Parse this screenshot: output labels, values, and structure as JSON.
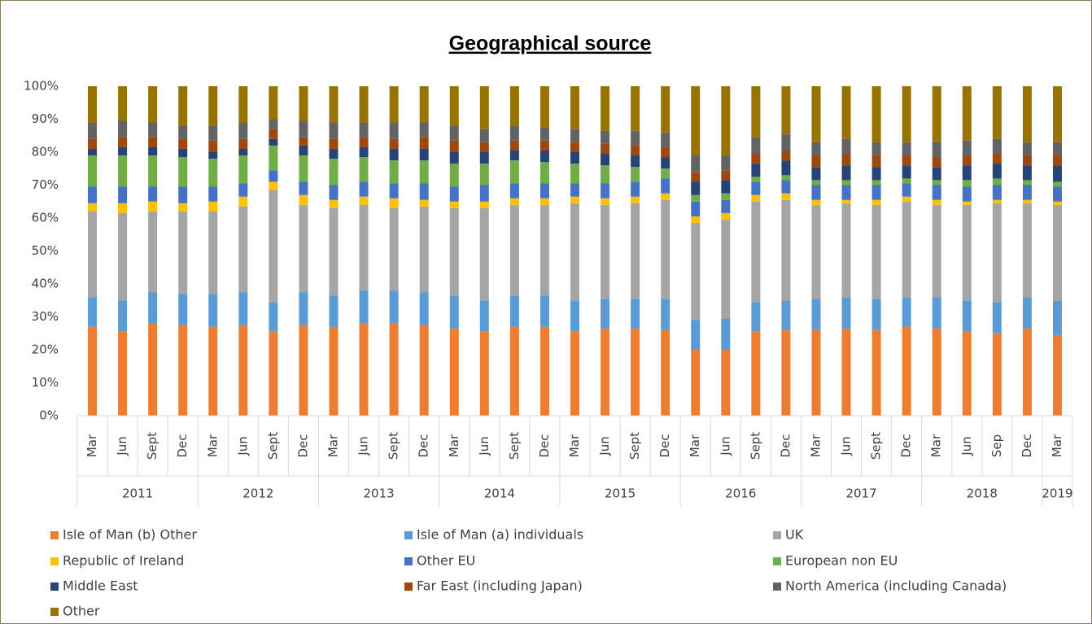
{
  "chart_data": {
    "type": "stacked_bar",
    "title": "Geographical source",
    "category_groups": [
      {
        "name": "2011",
        "categories": [
          "Mar",
          "Jun",
          "Sept",
          "Dec"
        ]
      },
      {
        "name": "2012",
        "categories": [
          "Mar",
          "Jun",
          "Sept",
          "Dec"
        ]
      },
      {
        "name": "2013",
        "categories": [
          "Mar",
          "Jun",
          "Sept",
          "Dec"
        ]
      },
      {
        "name": "2014",
        "categories": [
          "Mar",
          "Jun",
          "Sept",
          "Dec"
        ]
      },
      {
        "name": "2015",
        "categories": [
          "Mar",
          "Jun",
          "Sept",
          "Dec"
        ]
      },
      {
        "name": "2016",
        "categories": [
          "Mar",
          "Jun",
          "Sept",
          "Dec"
        ]
      },
      {
        "name": "2017",
        "categories": [
          "Mar",
          "Jun",
          "Sept",
          "Dec"
        ]
      },
      {
        "name": "2018",
        "categories": [
          "Mar",
          "Jun",
          "Sep",
          "Dec"
        ]
      },
      {
        "name": "2019",
        "categories": [
          "Mar"
        ]
      }
    ],
    "ylim": [
      0,
      100
    ],
    "yticks": [
      {
        "value": 0,
        "label": "0%"
      },
      {
        "value": 10,
        "label": "10%"
      },
      {
        "value": 20,
        "label": "20%"
      },
      {
        "value": 30,
        "label": "30%"
      },
      {
        "value": 40,
        "label": "40%"
      },
      {
        "value": 50,
        "label": "50%"
      },
      {
        "value": 60,
        "label": "60%"
      },
      {
        "value": 70,
        "label": "70%"
      },
      {
        "value": 80,
        "label": "80%"
      },
      {
        "value": 90,
        "label": "90%"
      },
      {
        "value": 100,
        "label": "100%"
      }
    ],
    "grid": false,
    "series": [
      {
        "name": "Isle of Man (b) Other",
        "color": "#ed7d31",
        "values": [
          27,
          25.5,
          28,
          27.5,
          27,
          27.5,
          25.5,
          27.5,
          27,
          28,
          28,
          27.5,
          26.5,
          25.5,
          27,
          27,
          25.5,
          26.5,
          26.5,
          26,
          20,
          20,
          25.5,
          26,
          26,
          26.5,
          26,
          27,
          26.5,
          25.5,
          25,
          26.5,
          24.5
        ]
      },
      {
        "name": "Isle of Man (a) individuals",
        "color": "#5b9bd5",
        "values": [
          9,
          9.5,
          9.5,
          9.5,
          10,
          10,
          9,
          10,
          9.5,
          10,
          10,
          10,
          10,
          9.5,
          9.5,
          9.5,
          9.5,
          9,
          9,
          9.5,
          9,
          9.5,
          9,
          9,
          9.5,
          9.5,
          9.5,
          9,
          9.5,
          9.5,
          9.5,
          9.5,
          10.5
        ]
      },
      {
        "name": "UK",
        "color": "#a5a5a5",
        "values": [
          26,
          26.5,
          24.5,
          25,
          25,
          26,
          34,
          26.5,
          26.5,
          26,
          25,
          26,
          26.5,
          28,
          27.5,
          27.5,
          29.5,
          28.5,
          29,
          30,
          29.5,
          30,
          30.5,
          30.5,
          28.5,
          28.5,
          28.5,
          29,
          28,
          29,
          30,
          28.5,
          29
        ]
      },
      {
        "name": "Republic of Ireland",
        "color": "#ffc000",
        "values": [
          2.5,
          3,
          3,
          2.5,
          3,
          3,
          2.5,
          3,
          2.5,
          2.5,
          3,
          2,
          2,
          2,
          2,
          2,
          2,
          2,
          2,
          2,
          2,
          2,
          2,
          2,
          1.5,
          1,
          1.5,
          1.5,
          1.5,
          1,
          1,
          1,
          1
        ]
      },
      {
        "name": "Other EU",
        "color": "#4472c4",
        "values": [
          5,
          5,
          4.5,
          5,
          4.5,
          4,
          3.5,
          4,
          4.5,
          4.5,
          4.5,
          5,
          4.5,
          5,
          4.5,
          4.5,
          4,
          4.5,
          4.5,
          4.5,
          4.5,
          4,
          4,
          4,
          4.5,
          4.5,
          4.5,
          4,
          4.5,
          4.5,
          4.5,
          4.5,
          4.5
        ]
      },
      {
        "name": "European non EU",
        "color": "#70ad47",
        "values": [
          9.5,
          9.5,
          9.5,
          9,
          8.5,
          8.5,
          7.5,
          8,
          8,
          7.5,
          7,
          7,
          7,
          6.5,
          7,
          6.5,
          6,
          5.5,
          4.5,
          3,
          2,
          2,
          1.5,
          1.5,
          1.5,
          1.5,
          1.5,
          1.5,
          1.5,
          2,
          2,
          1.5,
          1.5
        ]
      },
      {
        "name": "Middle East",
        "color": "#264478",
        "values": [
          2,
          2.5,
          2.5,
          2.5,
          2,
          2,
          2,
          3,
          3,
          3,
          3.5,
          3.5,
          3.5,
          3.5,
          3,
          3.5,
          3.5,
          3.5,
          3.5,
          3.5,
          4,
          4,
          4,
          4.5,
          4,
          4.5,
          4,
          4,
          4,
          4.5,
          4.5,
          4.5,
          5
        ]
      },
      {
        "name": "Far East (including Japan)",
        "color": "#9e480e",
        "values": [
          3,
          3,
          3,
          3,
          3.5,
          3,
          3,
          2.5,
          3,
          3,
          3,
          3.5,
          3.5,
          3,
          3,
          3,
          3,
          3,
          3,
          3,
          3,
          3,
          3,
          3,
          3.5,
          3.5,
          3.5,
          3,
          3,
          3,
          3,
          3,
          3
        ]
      },
      {
        "name": "North America (including Canada)",
        "color": "#636363",
        "values": [
          5,
          5,
          4.5,
          4,
          4.5,
          5,
          3,
          5,
          5,
          4.5,
          5,
          4.5,
          4.5,
          4,
          4.5,
          4,
          4,
          4,
          4.5,
          4.5,
          5,
          4.5,
          5,
          5,
          4,
          4.5,
          4,
          4,
          4.5,
          4.5,
          4.5,
          4,
          4
        ]
      },
      {
        "name": "Other",
        "color": "#997300",
        "values": [
          11,
          10.5,
          11,
          12,
          12,
          11,
          10,
          10.5,
          11,
          11,
          11,
          11,
          12,
          13,
          12,
          12.5,
          13,
          13.5,
          13.5,
          14,
          21,
          21,
          15.5,
          14.5,
          17,
          16,
          17,
          17,
          17,
          16.5,
          16,
          17,
          17
        ]
      }
    ]
  }
}
